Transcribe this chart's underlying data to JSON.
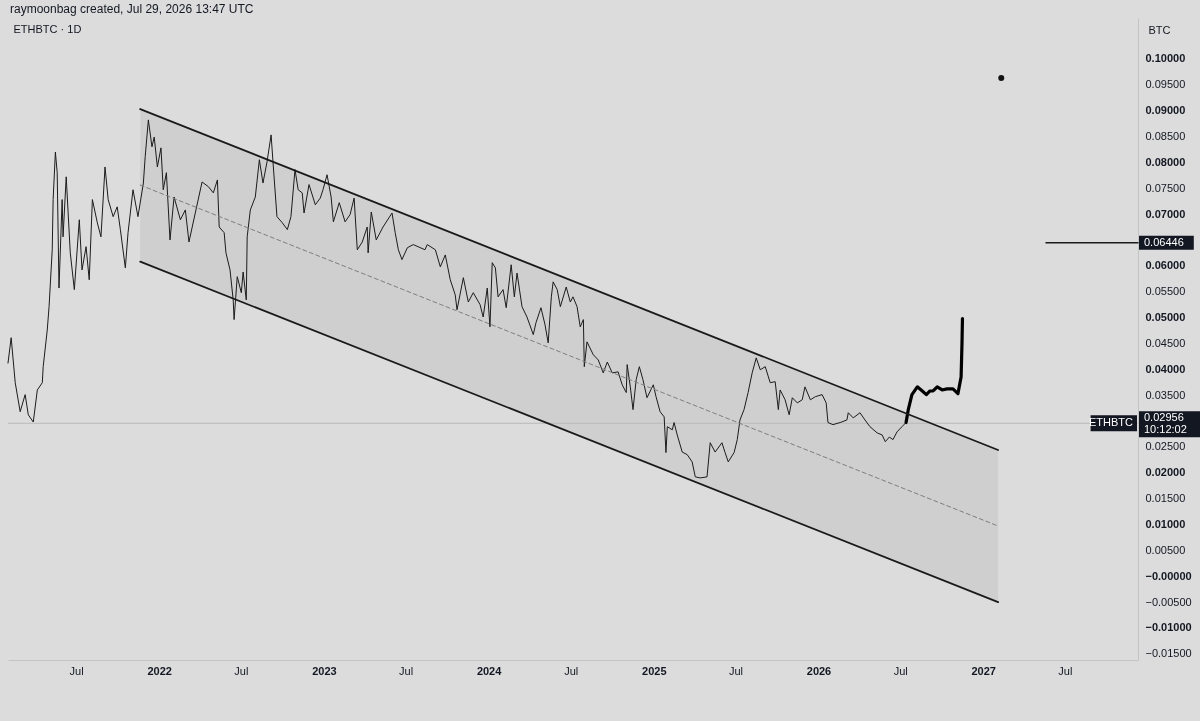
{
  "chart_data": {
    "type": "line",
    "title": "ETHBTC · 1D",
    "ylabel": "BTC",
    "annotations": [
      "raymoonbag created, Jul 29, 2026 13:47 UTC",
      {
        "text": "0.02956",
        "x": "2027-12-10",
        "y": 0.02956
      },
      {
        "text": "10:12:02",
        "x": "2027-12-10",
        "y": 0.02956
      },
      {
        "text": "0.06446",
        "x": "2027-12-10",
        "y": 0.06446
      }
    ],
    "xlim": [
      "2021-01-31",
      "2027-12-10"
    ],
    "xticks": [
      {
        "value": "2021-07-01",
        "label": "Jul"
      },
      {
        "value": "2022-01-01",
        "label": "2022"
      },
      {
        "value": "2022-07-01",
        "label": "Jul"
      },
      {
        "value": "2023-01-01",
        "label": "2023"
      },
      {
        "value": "2023-07-01",
        "label": "Jul"
      },
      {
        "value": "2024-01-01",
        "label": "2024"
      },
      {
        "value": "2024-07-01",
        "label": "Jul"
      },
      {
        "value": "2025-01-01",
        "label": "2025"
      },
      {
        "value": "2025-07-01",
        "label": "Jul"
      },
      {
        "value": "2026-01-01",
        "label": "2026"
      },
      {
        "value": "2026-07-01",
        "label": "Jul"
      },
      {
        "value": "2027-01-01",
        "label": "2027"
      },
      {
        "value": "2027-07-01",
        "label": "Jul"
      }
    ],
    "ylim": [
      -0.0162,
      0.1079
    ],
    "yticks": [
      {
        "value": 0.1,
        "label": "0.10000"
      },
      {
        "value": 0.095,
        "label": "0.09500"
      },
      {
        "value": 0.09,
        "label": "0.09000"
      },
      {
        "value": 0.085,
        "label": "0.08500"
      },
      {
        "value": 0.08,
        "label": "0.08000"
      },
      {
        "value": 0.075,
        "label": "0.07500"
      },
      {
        "value": 0.07,
        "label": "0.07000"
      },
      {
        "value": 0.06,
        "label": "0.06000"
      },
      {
        "value": 0.055,
        "label": "0.05500"
      },
      {
        "value": 0.05,
        "label": "0.05000"
      },
      {
        "value": 0.045,
        "label": "0.04500"
      },
      {
        "value": 0.04,
        "label": "0.04000"
      },
      {
        "value": 0.035,
        "label": "0.03500"
      },
      {
        "value": 0.025,
        "label": "0.02500"
      },
      {
        "value": 0.02,
        "label": "0.02000"
      },
      {
        "value": 0.015,
        "label": "0.01500"
      },
      {
        "value": 0.01,
        "label": "0.01000"
      },
      {
        "value": 0.005,
        "label": "0.00500"
      },
      {
        "value": 0,
        "label": "−0.00000"
      },
      {
        "value": -0.005,
        "label": "−0.00500"
      },
      {
        "value": -0.01,
        "label": "−0.01000"
      },
      {
        "value": -0.015,
        "label": "−0.01500"
      }
    ],
    "ref_lines": [
      {
        "axis": "y",
        "value": 0.02956,
        "label": "ETHBTC",
        "color": "#b9b9b9"
      }
    ],
    "series": [
      {
        "color": "#1c1c1c",
        "x": [
          "2021-01-31",
          "2021-02-07",
          "2021-02-16",
          "2021-02-27",
          "2021-03-10",
          "2021-03-17",
          "2021-03-28",
          "2021-04-06",
          "2021-04-17",
          "2021-04-19",
          "2021-04-28",
          "2021-05-02",
          "2021-05-09",
          "2021-05-11",
          "2021-05-16",
          "2021-05-20",
          "2021-05-24",
          "2021-05-31",
          "2021-06-02",
          "2021-06-09",
          "2021-06-18",
          "2021-06-27",
          "2021-07-08",
          "2021-07-14",
          "2021-07-23",
          "2021-07-30",
          "2021-08-06",
          "2021-08-17",
          "2021-08-25",
          "2021-09-03",
          "2021-09-10",
          "2021-09-21",
          "2021-09-30",
          "2021-10-07",
          "2021-10-18",
          "2021-10-24",
          "2021-11-04",
          "2021-11-15",
          "2021-11-27",
          "2021-12-01",
          "2021-12-08",
          "2021-12-16",
          "2021-12-21",
          "2021-12-28",
          "2022-01-05",
          "2022-01-10",
          "2022-01-17",
          "2022-01-25",
          "2022-02-03",
          "2022-02-17",
          "2022-02-28",
          "2022-03-08",
          "2022-03-22",
          "2022-04-06",
          "2022-04-20",
          "2022-05-01",
          "2022-05-10",
          "2022-05-14",
          "2022-05-25",
          "2022-05-29",
          "2022-06-07",
          "2022-06-14",
          "2022-06-16",
          "2022-06-23",
          "2022-07-02",
          "2022-07-06",
          "2022-07-13",
          "2022-07-15",
          "2022-07-22",
          "2022-08-02",
          "2022-08-11",
          "2022-08-19",
          "2022-08-28",
          "2022-09-06",
          "2022-09-11",
          "2022-09-19",
          "2022-10-01",
          "2022-10-12",
          "2022-10-20",
          "2022-10-29",
          "2022-11-05",
          "2022-11-14",
          "2022-11-18",
          "2022-11-29",
          "2022-12-13",
          "2022-12-24",
          "2022-12-30",
          "2023-01-08",
          "2023-01-17",
          "2023-01-22",
          "2023-02-04",
          "2023-02-17",
          "2023-02-28",
          "2023-03-09",
          "2023-03-16",
          "2023-03-27",
          "2023-04-07",
          "2023-04-09",
          "2023-04-16",
          "2023-04-27",
          "2023-05-12",
          "2023-06-01",
          "2023-06-08",
          "2023-06-15",
          "2023-06-23",
          "2023-07-05",
          "2023-07-18",
          "2023-08-13",
          "2023-08-18",
          "2023-09-05",
          "2023-09-16",
          "2023-09-27",
          "2023-10-08",
          "2023-10-19",
          "2023-10-23",
          "2023-11-06",
          "2023-11-17",
          "2023-11-28",
          "2023-12-13",
          "2023-12-20",
          "2023-12-29",
          "2024-01-04",
          "2024-01-09",
          "2024-01-16",
          "2024-01-22",
          "2024-02-02",
          "2024-02-09",
          "2024-02-20",
          "2024-02-27",
          "2024-03-04",
          "2024-03-15",
          "2024-03-26",
          "2024-04-09",
          "2024-04-15",
          "2024-04-26",
          "2024-05-05",
          "2024-05-12",
          "2024-05-19",
          "2024-05-23",
          "2024-06-01",
          "2024-06-08",
          "2024-06-21",
          "2024-06-30",
          "2024-07-06",
          "2024-07-15",
          "2024-07-22",
          "2024-07-29",
          "2024-07-31",
          "2024-08-06",
          "2024-08-20",
          "2024-08-31",
          "2024-09-11",
          "2024-09-20",
          "2024-10-01",
          "2024-10-14",
          "2024-10-23",
          "2024-11-01",
          "2024-11-03",
          "2024-11-10",
          "2024-11-16",
          "2024-11-23",
          "2024-11-30",
          "2024-12-08",
          "2024-12-17",
          "2024-12-31",
          "2025-01-06",
          "2025-01-15",
          "2025-01-24",
          "2025-01-28",
          "2025-01-31",
          "2025-02-11",
          "2025-02-15",
          "2025-02-22",
          "2025-03-05",
          "2025-03-16",
          "2025-03-27",
          "2025-04-03",
          "2025-04-14",
          "2025-04-29",
          "2025-05-06",
          "2025-05-17",
          "2025-06-01",
          "2025-06-08",
          "2025-06-15",
          "2025-06-28",
          "2025-07-05",
          "2025-07-11",
          "2025-07-20",
          "2025-07-29",
          "2025-08-07",
          "2025-08-16",
          "2025-08-25",
          "2025-09-05",
          "2025-09-16",
          "2025-09-27",
          "2025-10-04",
          "2025-10-08",
          "2025-10-19",
          "2025-10-28",
          "2025-11-04",
          "2025-11-15",
          "2025-11-26",
          "2025-12-02",
          "2025-12-14",
          "2025-12-25",
          "2026-01-09",
          "2026-01-18",
          "2026-01-22",
          "2026-02-02",
          "2026-02-18",
          "2026-03-05",
          "2026-03-08",
          "2026-03-19",
          "2026-04-03",
          "2026-04-14",
          "2026-04-25",
          "2026-05-11",
          "2026-05-22",
          "2026-05-29",
          "2026-06-07",
          "2026-06-15",
          "2026-06-24",
          "2026-07-05",
          "2026-07-14"
        ],
        "values": [
          0.0412,
          0.0461,
          0.0374,
          0.0318,
          0.0351,
          0.0312,
          0.0298,
          0.036,
          0.0374,
          0.0405,
          0.0476,
          0.0521,
          0.0631,
          0.0728,
          0.082,
          0.078,
          0.0557,
          0.0728,
          0.0656,
          0.0772,
          0.0625,
          0.0554,
          0.0689,
          0.0592,
          0.0637,
          0.0573,
          0.0728,
          0.0683,
          0.0656,
          0.0791,
          0.0728,
          0.0695,
          0.0714,
          0.067,
          0.0596,
          0.0664,
          0.0747,
          0.0695,
          0.076,
          0.0811,
          0.0882,
          0.083,
          0.0849,
          0.0791,
          0.0828,
          0.0747,
          0.078,
          0.065,
          0.0733,
          0.0689,
          0.0708,
          0.0646,
          0.0702,
          0.0762,
          0.0753,
          0.0741,
          0.0766,
          0.0675,
          0.0664,
          0.0625,
          0.0592,
          0.0534,
          0.0496,
          0.0579,
          0.0548,
          0.0588,
          0.0534,
          0.0656,
          0.0708,
          0.0733,
          0.0805,
          0.076,
          0.0801,
          0.0853,
          0.0791,
          0.0695,
          0.0683,
          0.067,
          0.0695,
          0.0786,
          0.0747,
          0.0741,
          0.0702,
          0.0757,
          0.0718,
          0.0731,
          0.0747,
          0.0776,
          0.0733,
          0.0685,
          0.0722,
          0.0685,
          0.0699,
          0.0731,
          0.0631,
          0.0646,
          0.0675,
          0.0625,
          0.0704,
          0.065,
          0.0675,
          0.0702,
          0.0664,
          0.0631,
          0.0612,
          0.0635,
          0.0641,
          0.0631,
          0.0641,
          0.0631,
          0.0598,
          0.0621,
          0.0573,
          0.0544,
          0.0515,
          0.0577,
          0.053,
          0.0548,
          0.0525,
          0.0501,
          0.0557,
          0.0482,
          0.0606,
          0.0596,
          0.054,
          0.0554,
          0.0519,
          0.0602,
          0.054,
          0.0586,
          0.0521,
          0.0501,
          0.0467,
          0.049,
          0.0519,
          0.0486,
          0.0451,
          0.054,
          0.0569,
          0.0554,
          0.0521,
          0.0559,
          0.053,
          0.054,
          0.0521,
          0.0482,
          0.0496,
          0.0405,
          0.0453,
          0.0428,
          0.0418,
          0.0393,
          0.0414,
          0.0393,
          0.0395,
          0.037,
          0.0355,
          0.0409,
          0.0366,
          0.0322,
          0.038,
          0.0405,
          0.038,
          0.0345,
          0.037,
          0.0347,
          0.0318,
          0.0308,
          0.0239,
          0.0289,
          0.0283,
          0.0297,
          0.0273,
          0.024,
          0.0235,
          0.0221,
          0.0192,
          0.019,
          0.0192,
          0.0258,
          0.024,
          0.0258,
          0.0239,
          0.0221,
          0.0239,
          0.0264,
          0.0302,
          0.0322,
          0.0355,
          0.0393,
          0.0422,
          0.0399,
          0.0405,
          0.0374,
          0.0376,
          0.0322,
          0.036,
          0.0341,
          0.0312,
          0.0345,
          0.0335,
          0.0341,
          0.0366,
          0.0341,
          0.0347,
          0.0351,
          0.0335,
          0.0297,
          0.0293,
          0.0297,
          0.0302,
          0.0316,
          0.0306,
          0.0316,
          0.0302,
          0.0289,
          0.0277,
          0.0273,
          0.026,
          0.0269,
          0.0264,
          0.0279,
          0.0289,
          0.0297
        ]
      },
      {
        "color": "#000000",
        "x": [
          "2026-07-14",
          "2026-07-19",
          "2026-07-27",
          "2026-08-08",
          "2026-08-19",
          "2026-08-28",
          "2026-09-05",
          "2026-09-12",
          "2026-09-21",
          "2026-10-02",
          "2026-10-13",
          "2026-10-26",
          "2026-11-06",
          "2026-11-13",
          "2026-11-15",
          "2026-11-16"
        ],
        "values": [
          0.0297,
          0.0322,
          0.0351,
          0.0366,
          0.0358,
          0.0351,
          0.0358,
          0.0358,
          0.0366,
          0.036,
          0.0362,
          0.0362,
          0.0353,
          0.0385,
          0.0451,
          0.0498
        ]
      },
      {
        "color": "#1a1a1a",
        "x": [
          "2021-11-20",
          "2027-02-03"
        ],
        "values": [
          0.0903,
          0.0244
        ]
      },
      {
        "color": "#7f7f7f",
        "line_style": "dashed",
        "x": [
          "2021-11-20",
          "2027-02-03"
        ],
        "values": [
          0.0756,
          0.0097
        ],
        "lower": [
          0.0608,
          -0.005
        ],
        "upper": [
          0.0903,
          0.0244
        ]
      },
      {
        "color": "#1a1a1a",
        "x": [
          "2021-11-20",
          "2027-02-03"
        ],
        "values": [
          0.0608,
          -0.005
        ]
      },
      {
        "color": "#1a1a1a",
        "x": [
          "2027-05-20",
          "2027-12-10"
        ],
        "values": [
          0.06446,
          0.06446
        ]
      },
      {
        "type": "scatter",
        "color": "#111111",
        "marker": "circle",
        "x": [
          "2027-02-10"
        ],
        "values": [
          0.0963
        ]
      }
    ]
  }
}
